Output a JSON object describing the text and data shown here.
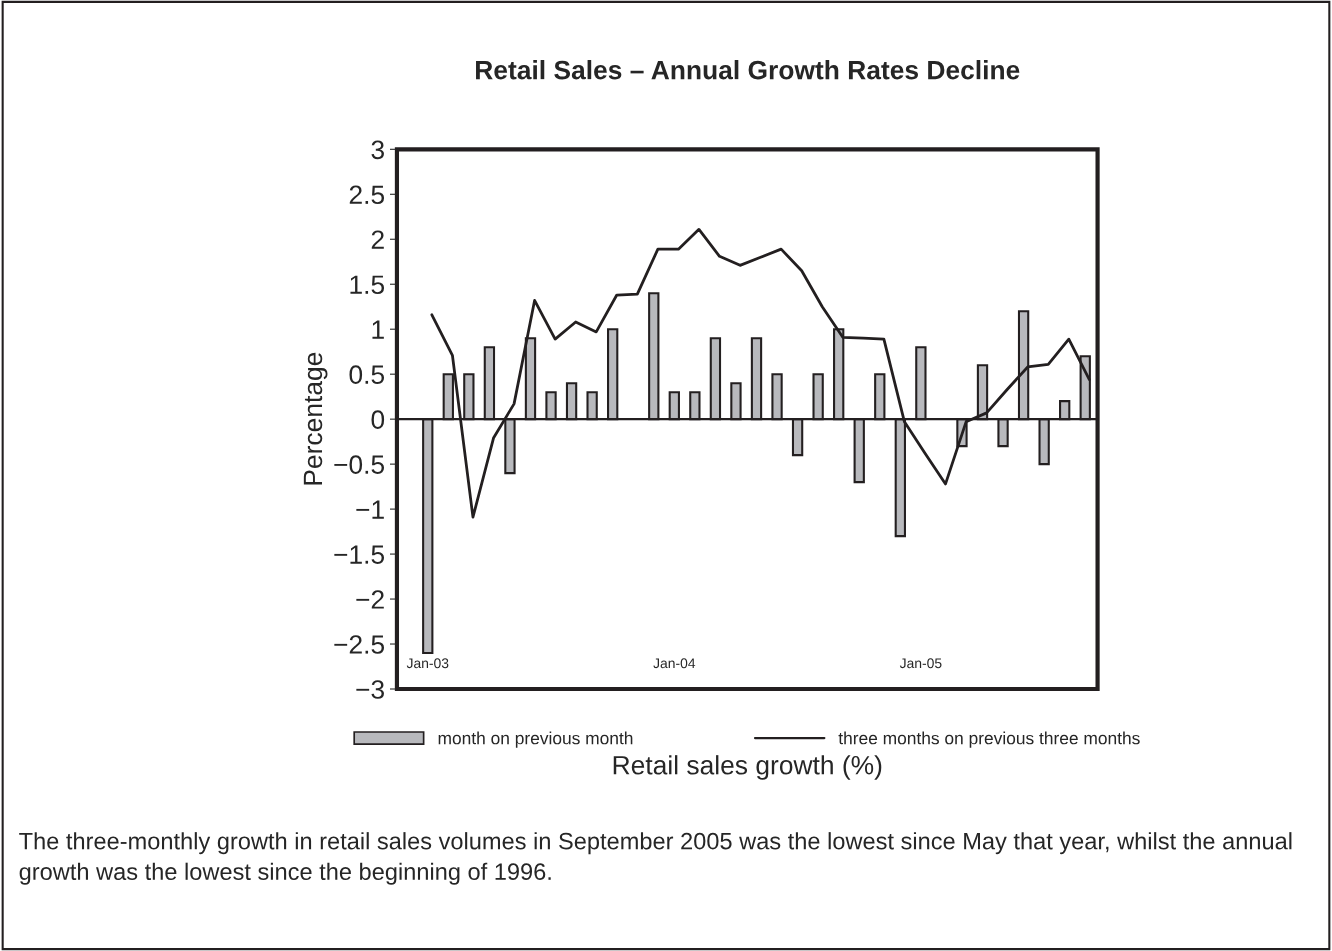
{
  "chart_data": {
    "type": "line",
    "title": "Retail Sales – Annual Growth Rates Decline",
    "xlabel": "Retail sales growth (%)",
    "ylabel": "Percentage",
    "categories": [
      "Jan-03",
      null,
      null,
      null,
      null,
      null,
      null,
      null,
      null,
      null,
      null,
      null,
      "Jan-04",
      null,
      null,
      null,
      null,
      null,
      null,
      null,
      null,
      null,
      null,
      null,
      "Jan-05",
      null,
      null,
      null,
      null,
      null,
      null,
      null,
      null
    ],
    "series": [
      {
        "name": "month on previous month",
        "type": "bar",
        "color": "#b8b9bd",
        "values": [
          -2.6,
          0.5,
          0.5,
          0.8,
          -0.6,
          0.9,
          0.3,
          0.4,
          0.3,
          1.0,
          null,
          1.4,
          0.3,
          0.3,
          0.9,
          0.4,
          0.9,
          0.5,
          -0.4,
          0.5,
          1.0,
          -0.7,
          0.5,
          -1.3,
          0.8,
          null,
          -0.3,
          0.6,
          -0.3,
          1.2,
          -0.5,
          0.2,
          0.7
        ]
      },
      {
        "name": "three months on previous three months",
        "color": "#231f20",
        "values": [
          1.16,
          0.71,
          -1.09,
          -0.21,
          0.17,
          1.32,
          0.89,
          1.08,
          0.97,
          1.38,
          1.39,
          1.89,
          1.89,
          2.11,
          1.81,
          1.71,
          1.8,
          1.89,
          1.65,
          1.25,
          0.91,
          0.9,
          0.89,
          -0.03,
          -0.38,
          -0.72,
          -0.03,
          0.07,
          0.33,
          0.58,
          0.61,
          0.89,
          0.44
        ]
      }
    ],
    "ylim": [
      -3,
      3
    ],
    "yticks": [
      {
        "value": -3,
        "label": "−3"
      },
      {
        "value": -2.5,
        "label": "−2.5"
      },
      {
        "value": -2,
        "label": "−2"
      },
      {
        "value": -1.5,
        "label": "−1.5"
      },
      {
        "value": -1,
        "label": "−1"
      },
      {
        "value": -0.5,
        "label": "−0.5"
      },
      0,
      0.5,
      1,
      1.5,
      2,
      2.5,
      3
    ],
    "legend": "bottom",
    "marker": "none",
    "line_style": "solid",
    "annotations": [
      "The three-monthly growth in retail sales volumes in September 2005 was the lowest since May that year, whilst the annual growth was the lowest since the beginning of 1996."
    ]
  }
}
